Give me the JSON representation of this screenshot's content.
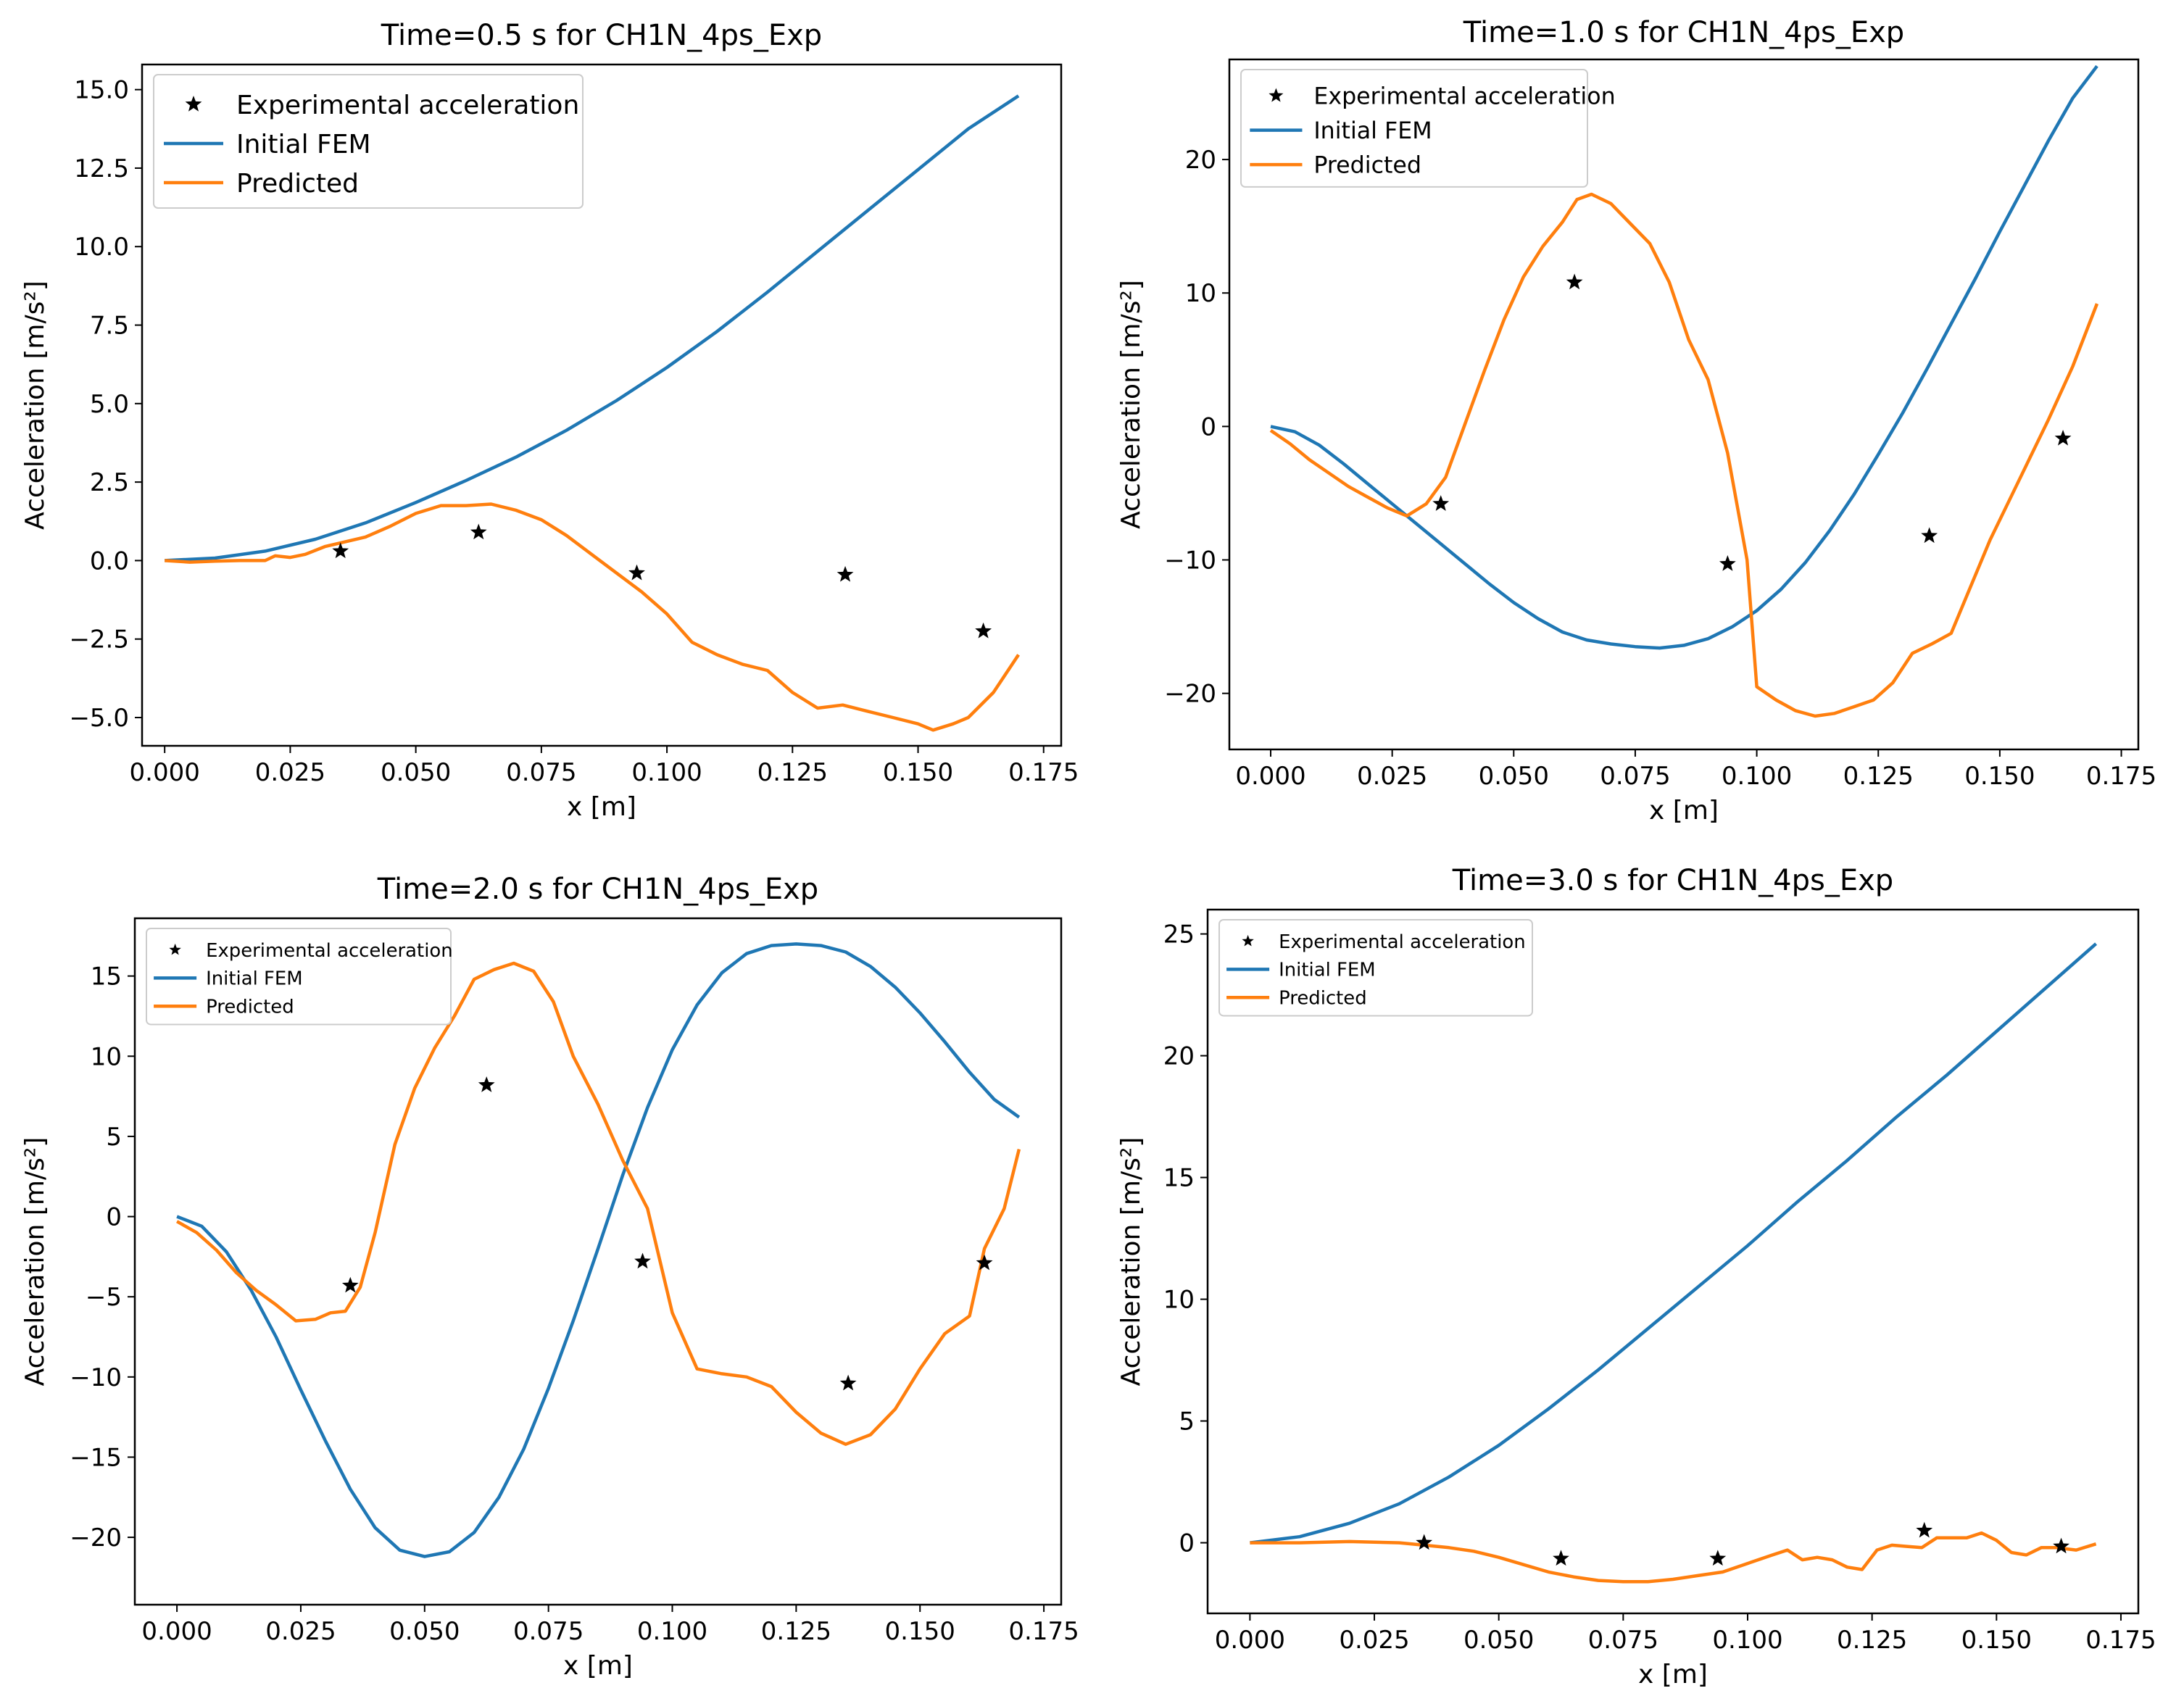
{
  "chart_data": [
    {
      "type": "line",
      "title": "Time=0.5 s for CH1N_4ps_Exp",
      "xlabel": "x [m]",
      "ylabel": "Acceleration [m/s²]",
      "xlim": [
        -0.0045,
        0.1785
      ],
      "ylim": [
        -5.9,
        15.8
      ],
      "xticks": [
        0.0,
        0.025,
        0.05,
        0.075,
        0.1,
        0.125,
        0.15,
        0.175
      ],
      "xtick_labels": [
        "0.000",
        "0.025",
        "0.050",
        "0.075",
        "0.100",
        "0.125",
        "0.150",
        "0.175"
      ],
      "yticks": [
        -5.0,
        -2.5,
        0.0,
        2.5,
        5.0,
        7.5,
        10.0,
        12.5,
        15.0
      ],
      "ytick_labels": [
        "−5.0",
        "−2.5",
        "0.0",
        "2.5",
        "5.0",
        "7.5",
        "10.0",
        "12.5",
        "15.0"
      ],
      "legend": "top-left",
      "legend_scale": 1.0,
      "series": [
        {
          "name": "Experimental acceleration",
          "kind": "marker",
          "color": "#000000",
          "x": [
            0.035,
            0.0625,
            0.094,
            0.1355,
            0.163
          ],
          "y": [
            0.3,
            0.9,
            -0.4,
            -0.45,
            -2.25
          ]
        },
        {
          "name": "Initial FEM",
          "kind": "line",
          "color": "#1f77b4",
          "x": [
            0.0,
            0.01,
            0.02,
            0.03,
            0.04,
            0.05,
            0.06,
            0.07,
            0.08,
            0.09,
            0.1,
            0.11,
            0.12,
            0.13,
            0.14,
            0.15,
            0.16,
            0.17
          ],
          "y": [
            0.0,
            0.08,
            0.3,
            0.68,
            1.2,
            1.85,
            2.55,
            3.3,
            4.15,
            5.1,
            6.15,
            7.3,
            8.55,
            9.85,
            11.15,
            12.45,
            13.75,
            14.8
          ]
        },
        {
          "name": "Predicted",
          "kind": "line",
          "color": "#ff7f0e",
          "x": [
            0.0,
            0.005,
            0.01,
            0.015,
            0.02,
            0.022,
            0.025,
            0.028,
            0.032,
            0.036,
            0.04,
            0.045,
            0.05,
            0.055,
            0.06,
            0.065,
            0.07,
            0.075,
            0.08,
            0.085,
            0.09,
            0.095,
            0.1,
            0.105,
            0.11,
            0.115,
            0.12,
            0.125,
            0.13,
            0.135,
            0.14,
            0.145,
            0.15,
            0.153,
            0.157,
            0.16,
            0.165,
            0.17
          ],
          "y": [
            0.0,
            -0.05,
            -0.02,
            0.0,
            0.0,
            0.15,
            0.1,
            0.2,
            0.45,
            0.6,
            0.75,
            1.1,
            1.5,
            1.75,
            1.75,
            1.8,
            1.6,
            1.3,
            0.8,
            0.2,
            -0.4,
            -1.0,
            -1.7,
            -2.6,
            -3.0,
            -3.3,
            -3.5,
            -4.2,
            -4.7,
            -4.6,
            -4.8,
            -5.0,
            -5.2,
            -5.4,
            -5.2,
            -5.0,
            -4.2,
            -3.0
          ]
        }
      ]
    },
    {
      "type": "line",
      "title": "Time=1.0 s for CH1N_4ps_Exp",
      "xlabel": "x [m]",
      "ylabel": "Acceleration [m/s²]",
      "xlim": [
        -0.0085,
        0.1785
      ],
      "ylim": [
        -24.2,
        27.5
      ],
      "xticks": [
        0.0,
        0.025,
        0.05,
        0.075,
        0.1,
        0.125,
        0.15,
        0.175
      ],
      "xtick_labels": [
        "0.000",
        "0.025",
        "0.050",
        "0.075",
        "0.100",
        "0.125",
        "0.150",
        "0.175"
      ],
      "yticks": [
        -20,
        -10,
        0,
        10,
        20
      ],
      "ytick_labels": [
        "−20",
        "−10",
        "0",
        "10",
        "20"
      ],
      "legend": "top-left",
      "legend_scale": 0.88,
      "series": [
        {
          "name": "Experimental acceleration",
          "kind": "marker",
          "color": "#000000",
          "x": [
            0.035,
            0.0625,
            0.094,
            0.1355,
            0.163
          ],
          "y": [
            -5.8,
            10.8,
            -10.3,
            -8.2,
            -0.9
          ]
        },
        {
          "name": "Initial FEM",
          "kind": "line",
          "color": "#1f77b4",
          "x": [
            0.0,
            0.005,
            0.01,
            0.015,
            0.02,
            0.025,
            0.03,
            0.035,
            0.04,
            0.045,
            0.05,
            0.055,
            0.06,
            0.065,
            0.07,
            0.075,
            0.08,
            0.085,
            0.09,
            0.095,
            0.1,
            0.105,
            0.11,
            0.115,
            0.12,
            0.125,
            0.13,
            0.135,
            0.14,
            0.145,
            0.15,
            0.155,
            0.16,
            0.165,
            0.17
          ],
          "y": [
            0.0,
            -0.4,
            -1.4,
            -2.8,
            -4.3,
            -5.8,
            -7.3,
            -8.8,
            -10.3,
            -11.8,
            -13.2,
            -14.4,
            -15.4,
            -16.0,
            -16.3,
            -16.5,
            -16.6,
            -16.4,
            -15.9,
            -15.0,
            -13.8,
            -12.2,
            -10.2,
            -7.8,
            -5.1,
            -2.1,
            1.0,
            4.3,
            7.7,
            11.1,
            14.6,
            18.0,
            21.4,
            24.6,
            27.0
          ]
        },
        {
          "name": "Predicted",
          "kind": "line",
          "color": "#ff7f0e",
          "x": [
            0.0,
            0.004,
            0.008,
            0.012,
            0.016,
            0.02,
            0.024,
            0.028,
            0.032,
            0.036,
            0.04,
            0.044,
            0.048,
            0.052,
            0.056,
            0.06,
            0.063,
            0.066,
            0.07,
            0.074,
            0.078,
            0.082,
            0.086,
            0.09,
            0.094,
            0.098,
            0.1,
            0.104,
            0.108,
            0.112,
            0.116,
            0.12,
            0.124,
            0.128,
            0.132,
            0.136,
            0.14,
            0.144,
            0.148,
            0.152,
            0.156,
            0.16,
            0.165,
            0.17
          ],
          "y": [
            -0.3,
            -1.3,
            -2.5,
            -3.5,
            -4.5,
            -5.3,
            -6.1,
            -6.7,
            -5.8,
            -3.8,
            0.2,
            4.2,
            8.0,
            11.2,
            13.5,
            15.3,
            17.0,
            17.4,
            16.7,
            15.2,
            13.7,
            10.8,
            6.5,
            3.5,
            -2.0,
            -10.0,
            -19.5,
            -20.5,
            -21.3,
            -21.7,
            -21.5,
            -21.0,
            -20.5,
            -19.2,
            -17.0,
            -16.3,
            -15.5,
            -12.0,
            -8.5,
            -5.5,
            -2.5,
            0.5,
            4.5,
            9.2
          ]
        }
      ]
    },
    {
      "type": "line",
      "title": "Time=2.0 s for CH1N_4ps_Exp",
      "xlabel": "x [m]",
      "ylabel": "Acceleration [m/s²]",
      "xlim": [
        -0.0085,
        0.1785
      ],
      "ylim": [
        -24.2,
        18.6
      ],
      "xticks": [
        0.0,
        0.025,
        0.05,
        0.075,
        0.1,
        0.125,
        0.15,
        0.175
      ],
      "xtick_labels": [
        "0.000",
        "0.025",
        "0.050",
        "0.075",
        "0.100",
        "0.125",
        "0.150",
        "0.175"
      ],
      "yticks": [
        -20,
        -15,
        -10,
        -5,
        0,
        5,
        10,
        15
      ],
      "ytick_labels": [
        "−20",
        "−15",
        "−10",
        "−5",
        "0",
        "5",
        "10",
        "15"
      ],
      "legend": "top-left",
      "legend_scale": 0.72,
      "series": [
        {
          "name": "Experimental acceleration",
          "kind": "marker",
          "color": "#000000",
          "x": [
            0.035,
            0.0625,
            0.094,
            0.1355,
            0.163
          ],
          "y": [
            -4.3,
            8.2,
            -2.8,
            -10.4,
            -2.9
          ]
        },
        {
          "name": "Initial FEM",
          "kind": "line",
          "color": "#1f77b4",
          "x": [
            0.0,
            0.005,
            0.01,
            0.015,
            0.02,
            0.025,
            0.03,
            0.035,
            0.04,
            0.045,
            0.05,
            0.055,
            0.06,
            0.065,
            0.07,
            0.075,
            0.08,
            0.085,
            0.09,
            0.095,
            0.1,
            0.105,
            0.11,
            0.115,
            0.12,
            0.125,
            0.13,
            0.135,
            0.14,
            0.145,
            0.15,
            0.155,
            0.16,
            0.165,
            0.17
          ],
          "y": [
            0.0,
            -0.6,
            -2.2,
            -4.6,
            -7.5,
            -10.8,
            -14.0,
            -17.0,
            -19.4,
            -20.8,
            -21.2,
            -20.9,
            -19.7,
            -17.5,
            -14.5,
            -10.7,
            -6.5,
            -2.0,
            2.6,
            6.8,
            10.4,
            13.2,
            15.2,
            16.4,
            16.9,
            17.0,
            16.9,
            16.5,
            15.6,
            14.3,
            12.7,
            10.9,
            9.0,
            7.3,
            6.2
          ]
        },
        {
          "name": "Predicted",
          "kind": "line",
          "color": "#ff7f0e",
          "x": [
            0.0,
            0.004,
            0.008,
            0.012,
            0.016,
            0.02,
            0.024,
            0.028,
            0.031,
            0.034,
            0.037,
            0.04,
            0.044,
            0.048,
            0.052,
            0.056,
            0.06,
            0.064,
            0.068,
            0.072,
            0.076,
            0.08,
            0.085,
            0.09,
            0.095,
            0.1,
            0.105,
            0.11,
            0.115,
            0.12,
            0.125,
            0.13,
            0.135,
            0.14,
            0.145,
            0.15,
            0.155,
            0.16,
            0.163,
            0.167,
            0.17
          ],
          "y": [
            -0.3,
            -1.0,
            -2.1,
            -3.5,
            -4.6,
            -5.5,
            -6.5,
            -6.4,
            -6.0,
            -5.9,
            -4.4,
            -1.0,
            4.5,
            8.0,
            10.5,
            12.5,
            14.8,
            15.4,
            15.8,
            15.3,
            13.4,
            10.0,
            7.0,
            3.5,
            0.5,
            -6.0,
            -9.5,
            -9.8,
            -10.0,
            -10.6,
            -12.2,
            -13.5,
            -14.2,
            -13.6,
            -12.0,
            -9.5,
            -7.3,
            -6.2,
            -2.0,
            0.5,
            4.2
          ]
        }
      ]
    },
    {
      "type": "line",
      "title": "Time=3.0 s for CH1N_4ps_Exp",
      "xlabel": "x [m]",
      "ylabel": "Acceleration [m/s²]",
      "xlim": [
        -0.0085,
        0.1785
      ],
      "ylim": [
        -2.9,
        26.0
      ],
      "xticks": [
        0.0,
        0.025,
        0.05,
        0.075,
        0.1,
        0.125,
        0.15,
        0.175
      ],
      "xtick_labels": [
        "0.000",
        "0.025",
        "0.050",
        "0.075",
        "0.100",
        "0.125",
        "0.150",
        "0.175"
      ],
      "yticks": [
        0,
        5,
        10,
        15,
        20,
        25
      ],
      "ytick_labels": [
        "0",
        "5",
        "10",
        "15",
        "20",
        "25"
      ],
      "legend": "top-left",
      "legend_scale": 0.72,
      "series": [
        {
          "name": "Experimental acceleration",
          "kind": "marker",
          "color": "#000000",
          "x": [
            0.035,
            0.0625,
            0.094,
            0.1355,
            0.163
          ],
          "y": [
            0.0,
            -0.65,
            -0.65,
            0.5,
            -0.15
          ]
        },
        {
          "name": "Initial FEM",
          "kind": "line",
          "color": "#1f77b4",
          "x": [
            0.0,
            0.01,
            0.02,
            0.03,
            0.04,
            0.05,
            0.06,
            0.07,
            0.08,
            0.09,
            0.1,
            0.11,
            0.12,
            0.13,
            0.14,
            0.15,
            0.16,
            0.17
          ],
          "y": [
            0.0,
            0.25,
            0.8,
            1.6,
            2.7,
            4.0,
            5.5,
            7.1,
            8.8,
            10.5,
            12.2,
            14.0,
            15.7,
            17.5,
            19.2,
            21.0,
            22.8,
            24.6
          ]
        },
        {
          "name": "Predicted",
          "kind": "line",
          "color": "#ff7f0e",
          "x": [
            0.0,
            0.01,
            0.02,
            0.03,
            0.035,
            0.04,
            0.045,
            0.05,
            0.055,
            0.06,
            0.065,
            0.07,
            0.075,
            0.08,
            0.085,
            0.09,
            0.095,
            0.1,
            0.105,
            0.108,
            0.111,
            0.114,
            0.117,
            0.12,
            0.123,
            0.126,
            0.129,
            0.132,
            0.135,
            0.138,
            0.141,
            0.144,
            0.147,
            0.15,
            0.153,
            0.156,
            0.159,
            0.162,
            0.166,
            0.17
          ],
          "y": [
            0.0,
            0.0,
            0.05,
            0.0,
            -0.1,
            -0.2,
            -0.35,
            -0.6,
            -0.9,
            -1.2,
            -1.4,
            -1.55,
            -1.6,
            -1.6,
            -1.5,
            -1.35,
            -1.2,
            -0.85,
            -0.5,
            -0.3,
            -0.7,
            -0.6,
            -0.7,
            -1.0,
            -1.1,
            -0.3,
            -0.1,
            -0.15,
            -0.2,
            0.2,
            0.2,
            0.2,
            0.4,
            0.1,
            -0.4,
            -0.5,
            -0.2,
            -0.2,
            -0.3,
            -0.05
          ]
        }
      ]
    }
  ]
}
